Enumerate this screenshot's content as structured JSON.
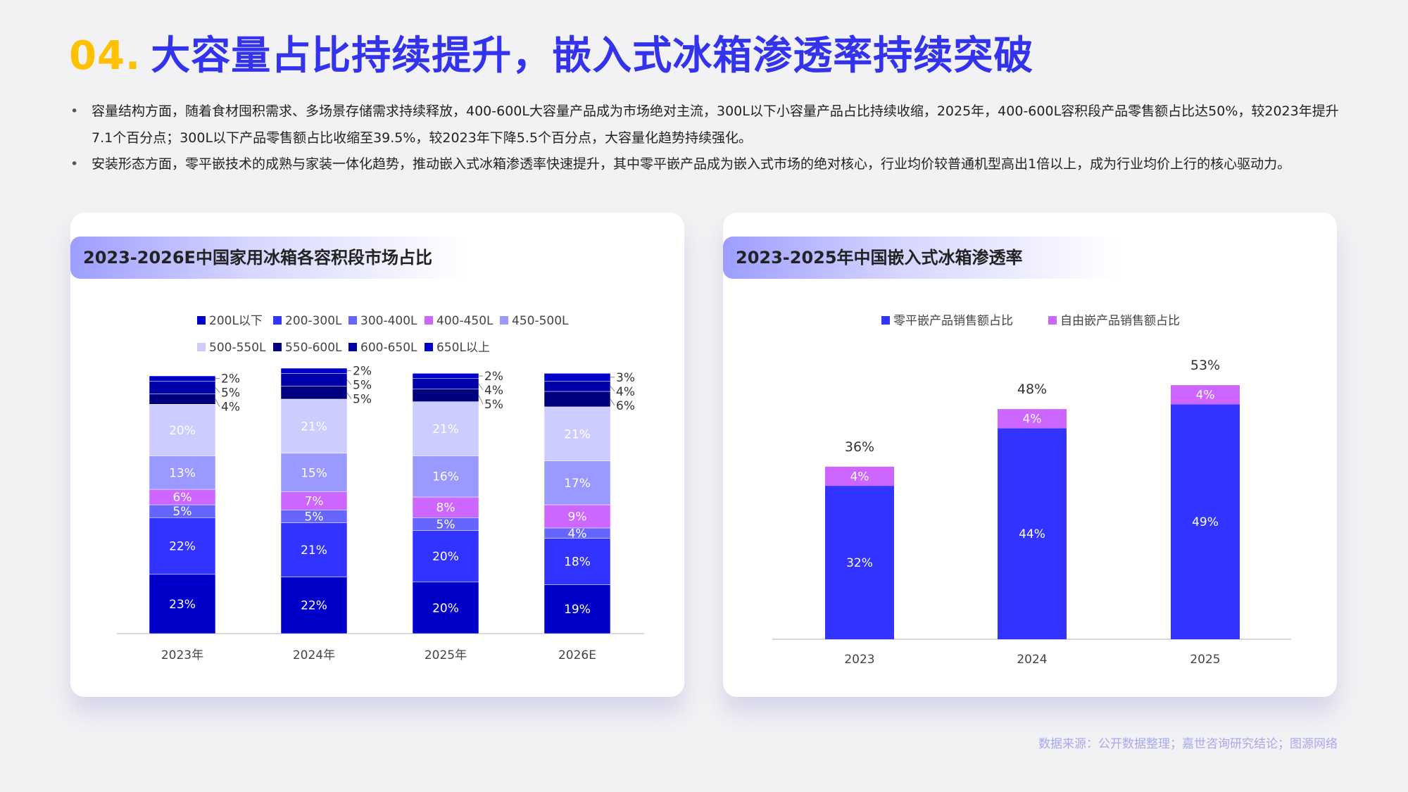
{
  "title": {
    "num": "04.",
    "text": "大容量占比持续提升，嵌入式冰箱渗透率持续突破"
  },
  "bullets": [
    "容量结构方面，随着食材囤积需求、多场景存储需求持续释放，400-600L大容量产品成为市场绝对主流，300L以下小容量产品占比持续收缩，2025年，400-600L容积段产品零售额占比达50%，较2023年提升7.1个百分点；300L以下产品零售额占比收缩至39.5%，较2023年下降5.5个百分点，大容量化趋势持续强化。",
    "安装形态方面，零平嵌技术的成熟与家装一体化趋势，推动嵌入式冰箱渗透率快速提升，其中零平嵌产品成为嵌入式市场的绝对核心，行业均价较普通机型高出1倍以上，成为行业均价上行的核心驱动力。"
  ],
  "source": "数据来源：公开数据整理；嘉世咨询研究结论；图源网络",
  "chart_data": [
    {
      "type": "bar",
      "stacked": true,
      "title": "2023-2026E中国家用冰箱各容积段市场占比",
      "categories": [
        "2023年",
        "2024年",
        "2025年",
        "2026E"
      ],
      "series": [
        {
          "name": "200L以下",
          "color": "#0000c8",
          "values": [
            23,
            22,
            20,
            19
          ]
        },
        {
          "name": "200-300L",
          "color": "#3333ff",
          "values": [
            22,
            21,
            20,
            18
          ]
        },
        {
          "name": "300-400L",
          "color": "#6666ff",
          "values": [
            5,
            5,
            5,
            4
          ]
        },
        {
          "name": "400-450L",
          "color": "#cc66ff",
          "values": [
            6,
            7,
            8,
            9
          ]
        },
        {
          "name": "450-500L",
          "color": "#9999ff",
          "values": [
            13,
            15,
            16,
            17
          ]
        },
        {
          "name": "500-550L",
          "color": "#ccccff",
          "values": [
            20,
            21,
            21,
            21
          ]
        },
        {
          "name": "550-600L",
          "color": "#000080",
          "values": [
            4,
            5,
            5,
            6
          ]
        },
        {
          "name": "600-650L",
          "color": "#0000aa",
          "values": [
            5,
            5,
            4,
            4
          ]
        },
        {
          "name": "650L以上",
          "color": "#0000cc",
          "values": [
            2,
            2,
            2,
            3
          ]
        }
      ],
      "unit": "%",
      "legend": "top"
    },
    {
      "type": "bar",
      "stacked": true,
      "title": "2023-2025年中国嵌入式冰箱渗透率",
      "categories": [
        "2023",
        "2024",
        "2025"
      ],
      "series": [
        {
          "name": "零平嵌产品销售额占比",
          "color": "#3333ff",
          "values": [
            32,
            44,
            49
          ]
        },
        {
          "name": "自由嵌产品销售额占比",
          "color": "#cc66ff",
          "values": [
            4,
            4,
            4
          ]
        }
      ],
      "totals": [
        36,
        48,
        53
      ],
      "unit": "%",
      "legend": "top"
    }
  ]
}
